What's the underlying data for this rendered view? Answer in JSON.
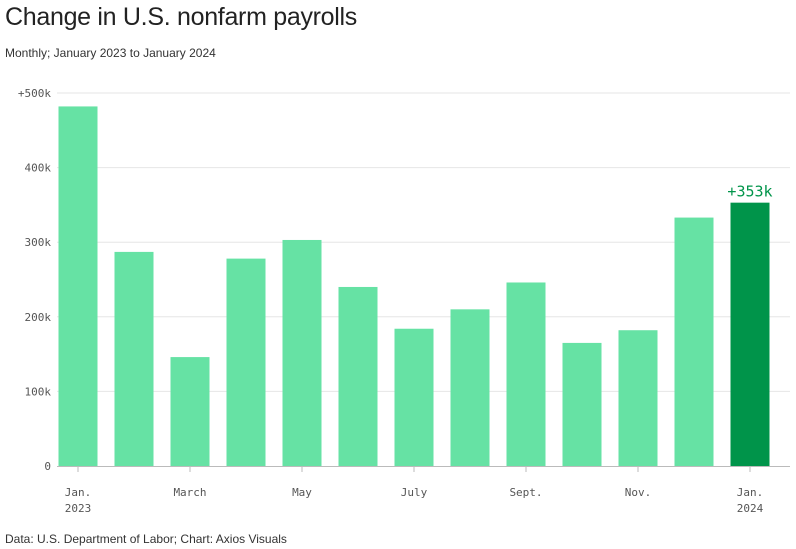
{
  "header": {
    "title": "Change in U.S. nonfarm payrolls",
    "subtitle": "Monthly; January 2023 to January 2024"
  },
  "footer": {
    "source": "Data: U.S. Department of Labor; Chart: Axios Visuals"
  },
  "colors": {
    "bar": "#66e2a4",
    "highlight": "#00944a",
    "grid": "#e6e6e6",
    "axis": "#bbbbbb"
  },
  "chart_data": {
    "type": "bar",
    "categories": [
      "Jan. 2023",
      "Feb. 2023",
      "March 2023",
      "April 2023",
      "May 2023",
      "June 2023",
      "July 2023",
      "Aug. 2023",
      "Sept. 2023",
      "Oct. 2023",
      "Nov. 2023",
      "Dec. 2023",
      "Jan. 2024"
    ],
    "values": [
      482,
      287,
      146,
      278,
      303,
      240,
      184,
      210,
      246,
      165,
      182,
      333,
      353
    ],
    "unit": "thousands",
    "ylim": [
      0,
      500
    ],
    "yticks": [
      {
        "value": 0,
        "label": "0"
      },
      {
        "value": 100,
        "label": "100k"
      },
      {
        "value": 200,
        "label": "200k"
      },
      {
        "value": 300,
        "label": "300k"
      },
      {
        "value": 400,
        "label": "400k"
      },
      {
        "value": 500,
        "label": "+500k"
      }
    ],
    "xtick_labels": [
      {
        "index": 0,
        "line1": "Jan.",
        "line2": "2023"
      },
      {
        "index": 2,
        "line1": "March",
        "line2": ""
      },
      {
        "index": 4,
        "line1": "May",
        "line2": ""
      },
      {
        "index": 6,
        "line1": "July",
        "line2": ""
      },
      {
        "index": 8,
        "line1": "Sept.",
        "line2": ""
      },
      {
        "index": 10,
        "line1": "Nov.",
        "line2": ""
      },
      {
        "index": 12,
        "line1": "Jan.",
        "line2": "2024"
      }
    ],
    "highlight_index": 12,
    "data_labels": [
      {
        "index": 12,
        "text": "+353k"
      }
    ],
    "grid": true,
    "legend": false
  }
}
